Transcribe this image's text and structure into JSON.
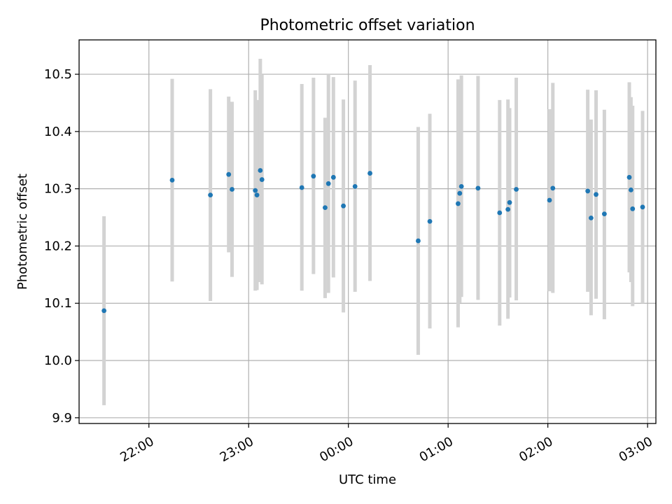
{
  "chart_data": {
    "type": "scatter",
    "title": "Photometric offset variation",
    "xlabel": "UTC time",
    "ylabel": "Photometric offset",
    "grid": true,
    "x_axis": {
      "unit": "UTC time",
      "range": [
        "21:18",
        "03:05"
      ],
      "ticks": [
        "22:00",
        "23:00",
        "00:00",
        "01:00",
        "02:00",
        "03:00"
      ]
    },
    "y_axis": {
      "range": [
        9.89,
        10.56
      ],
      "ticks": [
        "9.9",
        "10.0",
        "10.1",
        "10.2",
        "10.3",
        "10.4",
        "10.5"
      ]
    },
    "colors": {
      "point": "#1f77b4",
      "errorbar": "#d3d3d3",
      "grid": "#b0b0b0"
    },
    "series": [
      {
        "points": [
          {
            "x": "21:33",
            "y": 10.087,
            "ylo": 9.922,
            "yhi": 10.252
          },
          {
            "x": "22:14",
            "y": 10.315,
            "ylo": 10.138,
            "yhi": 10.492
          },
          {
            "x": "22:37",
            "y": 10.289,
            "ylo": 10.104,
            "yhi": 10.474
          },
          {
            "x": "22:48",
            "y": 10.325,
            "ylo": 10.189,
            "yhi": 10.461
          },
          {
            "x": "22:50",
            "y": 10.299,
            "ylo": 10.146,
            "yhi": 10.452
          },
          {
            "x": "23:04",
            "y": 10.297,
            "ylo": 10.122,
            "yhi": 10.472
          },
          {
            "x": "23:05",
            "y": 10.289,
            "ylo": 10.123,
            "yhi": 10.455
          },
          {
            "x": "23:07",
            "y": 10.332,
            "ylo": 10.137,
            "yhi": 10.527
          },
          {
            "x": "23:08",
            "y": 10.316,
            "ylo": 10.133,
            "yhi": 10.499
          },
          {
            "x": "23:32",
            "y": 10.302,
            "ylo": 10.122,
            "yhi": 10.483
          },
          {
            "x": "23:39",
            "y": 10.322,
            "ylo": 10.151,
            "yhi": 10.494
          },
          {
            "x": "23:46",
            "y": 10.267,
            "ylo": 10.109,
            "yhi": 10.424
          },
          {
            "x": "23:48",
            "y": 10.309,
            "ylo": 10.118,
            "yhi": 10.5
          },
          {
            "x": "23:51",
            "y": 10.32,
            "ylo": 10.145,
            "yhi": 10.495
          },
          {
            "x": "23:57",
            "y": 10.27,
            "ylo": 10.084,
            "yhi": 10.456
          },
          {
            "x": "00:04",
            "y": 10.304,
            "ylo": 10.12,
            "yhi": 10.489
          },
          {
            "x": "00:13",
            "y": 10.327,
            "ylo": 10.139,
            "yhi": 10.516
          },
          {
            "x": "00:42",
            "y": 10.209,
            "ylo": 10.01,
            "yhi": 10.408
          },
          {
            "x": "00:49",
            "y": 10.243,
            "ylo": 10.056,
            "yhi": 10.431
          },
          {
            "x": "01:06",
            "y": 10.274,
            "ylo": 10.058,
            "yhi": 10.491
          },
          {
            "x": "01:07",
            "y": 10.292,
            "ylo": 10.101,
            "yhi": 10.483
          },
          {
            "x": "01:08",
            "y": 10.304,
            "ylo": 10.111,
            "yhi": 10.498
          },
          {
            "x": "01:18",
            "y": 10.301,
            "ylo": 10.106,
            "yhi": 10.497
          },
          {
            "x": "01:31",
            "y": 10.258,
            "ylo": 10.061,
            "yhi": 10.455
          },
          {
            "x": "01:36",
            "y": 10.264,
            "ylo": 10.073,
            "yhi": 10.456
          },
          {
            "x": "01:37",
            "y": 10.276,
            "ylo": 10.11,
            "yhi": 10.441
          },
          {
            "x": "01:41",
            "y": 10.299,
            "ylo": 10.105,
            "yhi": 10.494
          },
          {
            "x": "02:01",
            "y": 10.28,
            "ylo": 10.121,
            "yhi": 10.439
          },
          {
            "x": "02:03",
            "y": 10.301,
            "ylo": 10.118,
            "yhi": 10.485
          },
          {
            "x": "02:24",
            "y": 10.296,
            "ylo": 10.12,
            "yhi": 10.473
          },
          {
            "x": "02:26",
            "y": 10.249,
            "ylo": 10.079,
            "yhi": 10.421
          },
          {
            "x": "02:29",
            "y": 10.29,
            "ylo": 10.108,
            "yhi": 10.472
          },
          {
            "x": "02:34",
            "y": 10.256,
            "ylo": 10.072,
            "yhi": 10.438
          },
          {
            "x": "02:49",
            "y": 10.32,
            "ylo": 10.154,
            "yhi": 10.486
          },
          {
            "x": "02:50",
            "y": 10.298,
            "ylo": 10.137,
            "yhi": 10.46
          },
          {
            "x": "02:51",
            "y": 10.265,
            "ylo": 10.095,
            "yhi": 10.445
          },
          {
            "x": "02:57",
            "y": 10.268,
            "ylo": 10.1,
            "yhi": 10.436
          }
        ]
      }
    ]
  }
}
